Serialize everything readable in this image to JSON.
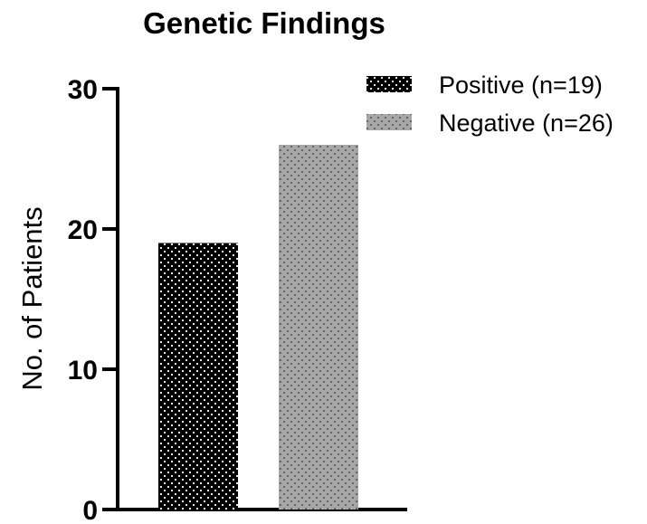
{
  "chart_data": {
    "type": "bar",
    "title": "Genetic Findings",
    "xlabel": "",
    "ylabel": "No. of Patients",
    "ylim": [
      0,
      30
    ],
    "yticks": [
      0,
      10,
      20,
      30
    ],
    "grid": false,
    "legend_position": "top-right",
    "series": [
      {
        "name": "Positive (n=19)",
        "values": [
          19
        ],
        "color": "#000000",
        "pattern": "white-dots"
      },
      {
        "name": "Negative (n=26)",
        "values": [
          26
        ],
        "color": "#a6a6a6",
        "pattern": "dark-dots"
      }
    ]
  }
}
